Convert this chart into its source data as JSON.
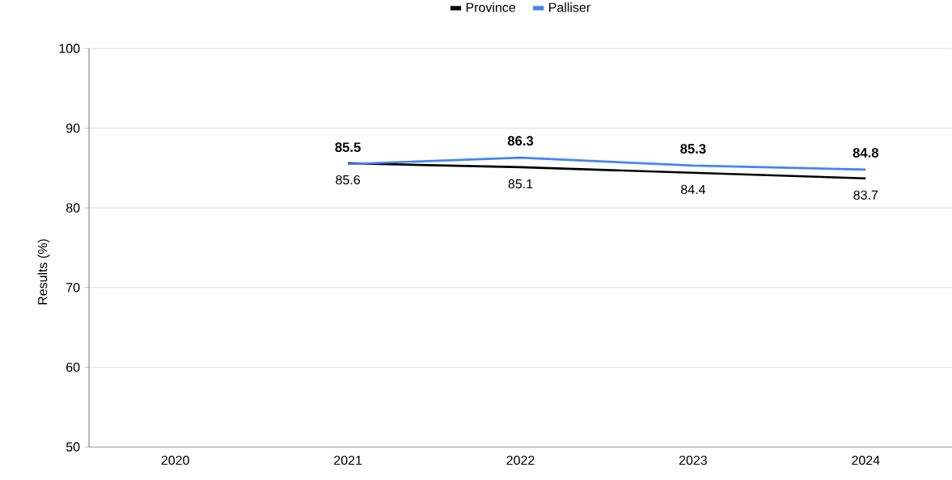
{
  "chart_data": {
    "type": "line",
    "ylabel": "Results (%)",
    "categories": [
      "2020",
      "2021",
      "2022",
      "2023",
      "2024"
    ],
    "series": [
      {
        "name": "Province",
        "color": "#000000",
        "values": [
          null,
          85.6,
          85.1,
          84.4,
          83.7
        ]
      },
      {
        "name": "Palliser",
        "color": "#4285f4",
        "values": [
          null,
          85.5,
          86.3,
          85.3,
          84.8
        ]
      }
    ],
    "ylim": [
      50,
      100
    ],
    "yticks": [
      50,
      60,
      70,
      80,
      90,
      100
    ],
    "grid": "y",
    "legend": "top",
    "data_labels": true,
    "marker": "none",
    "line_style": "solid"
  }
}
